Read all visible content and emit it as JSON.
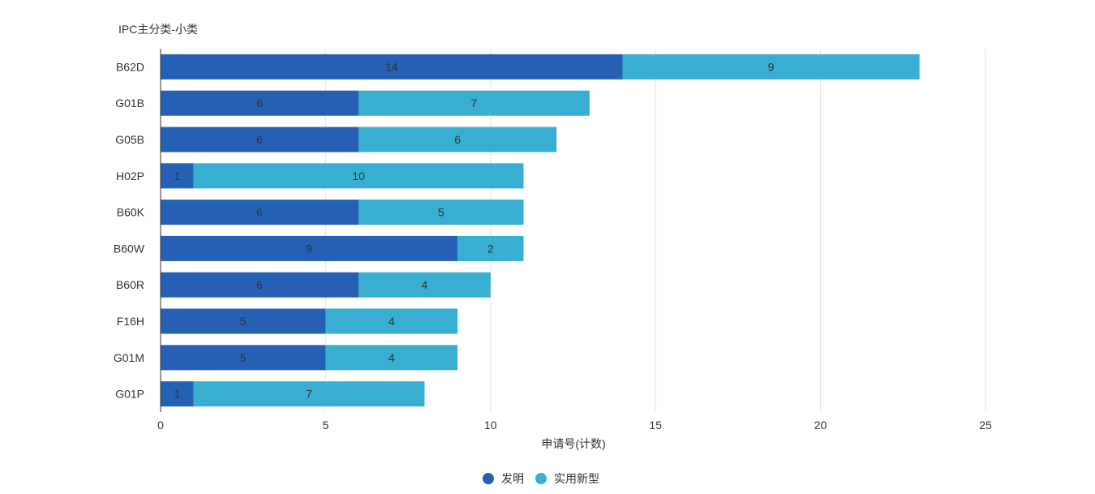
{
  "chart_data": {
    "type": "bar",
    "orientation": "horizontal",
    "stacked": true,
    "ylabel": "IPC主分类-小类",
    "xlabel": "申请号(计数)",
    "categories": [
      "B62D",
      "G01B",
      "G05B",
      "H02P",
      "B60K",
      "B60W",
      "B60R",
      "F16H",
      "G01M",
      "G01P"
    ],
    "series": [
      {
        "name": "发明",
        "color": "#2660B5",
        "values": [
          14,
          6,
          6,
          1,
          6,
          9,
          6,
          5,
          5,
          1
        ]
      },
      {
        "name": "实用新型",
        "color": "#38AED0",
        "values": [
          9,
          7,
          6,
          10,
          5,
          2,
          4,
          4,
          4,
          7
        ]
      }
    ],
    "xlim": [
      0,
      25
    ],
    "xticks": [
      "0",
      "5",
      "10",
      "15",
      "20",
      "25"
    ],
    "grid": true,
    "legend_position": "bottom-center"
  }
}
